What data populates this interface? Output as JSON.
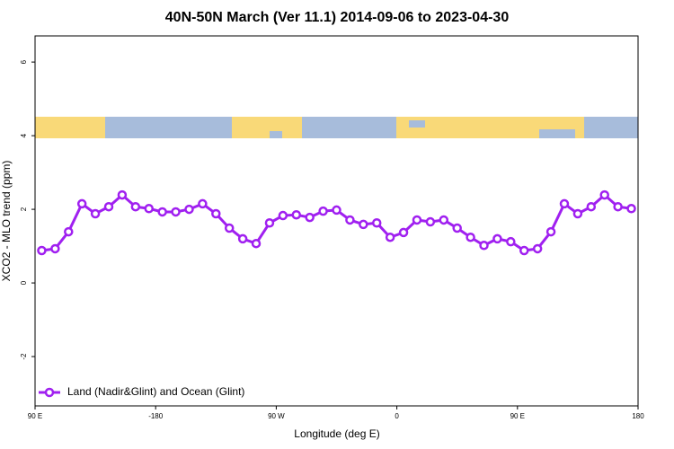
{
  "chart_data": {
    "type": "line",
    "title": "40N-50N March (Ver 11.1)   2014-09-06 to 2023-04-30",
    "x_label": "Longitude (deg E)",
    "y_label": "XCO2 - MLO trend (ppm)",
    "xlim": [
      -270,
      180
    ],
    "xticks": [
      {
        "value": -270,
        "label": "90 E"
      },
      -180,
      {
        "value": -90,
        "label": "90 W"
      },
      0,
      {
        "value": 90,
        "label": "90 E"
      },
      180
    ],
    "ylim": [
      -3.34,
      6.71
    ],
    "yticks": [
      -2,
      0,
      2,
      4,
      6
    ],
    "legend": "bottom-left",
    "x": [
      -265,
      -255,
      -245,
      -235,
      -225,
      -215,
      -205,
      -195,
      -185,
      -175,
      -165,
      -155,
      -145,
      -135,
      -125,
      -115,
      -105,
      -95,
      -85,
      -75,
      -65,
      -55,
      -45,
      -35,
      -25,
      -15,
      -5,
      5,
      15,
      25,
      35,
      45,
      55,
      65,
      75,
      85,
      95,
      105,
      115,
      125,
      135,
      145,
      155,
      165,
      175
    ],
    "series": [
      {
        "name": "Land (Nadir&Glint) and Ocean (Glint)",
        "color": "#a020f0",
        "values": [
          0.88,
          0.93,
          1.39,
          2.15,
          1.88,
          2.07,
          2.39,
          2.07,
          2.02,
          1.93,
          1.93,
          2.0,
          2.15,
          1.88,
          1.49,
          1.2,
          1.07,
          1.63,
          1.83,
          1.85,
          1.78,
          1.95,
          1.98,
          1.71,
          1.59,
          1.63,
          1.24,
          1.37,
          1.71,
          1.66,
          1.71,
          1.49,
          1.24,
          1.02,
          1.2,
          1.12,
          0.88,
          0.93,
          1.39,
          2.15,
          1.88,
          2.07,
          2.39,
          2.07,
          2.02
        ]
      }
    ]
  }
}
